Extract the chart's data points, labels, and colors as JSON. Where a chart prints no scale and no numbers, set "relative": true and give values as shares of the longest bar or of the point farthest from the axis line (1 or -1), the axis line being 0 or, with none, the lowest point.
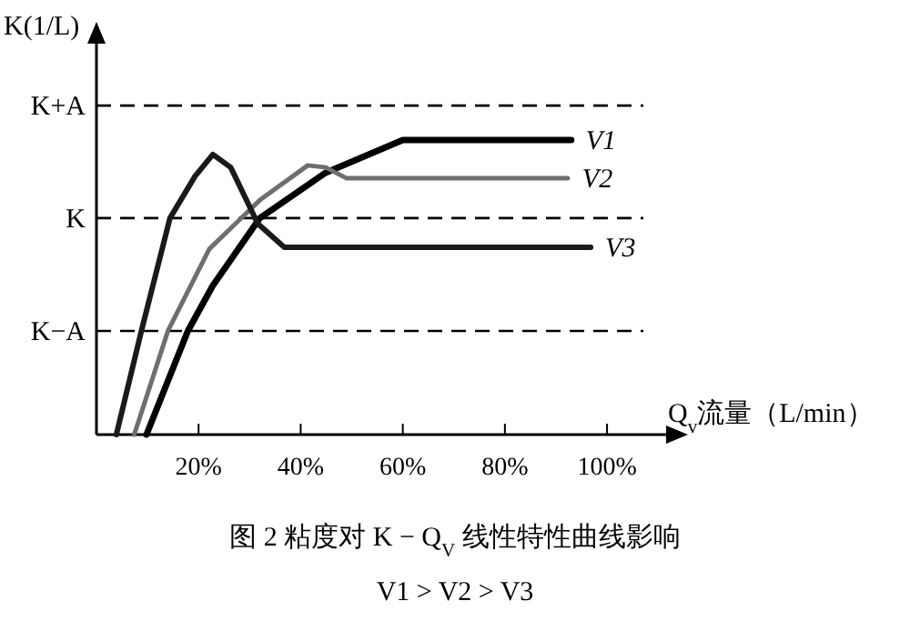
{
  "chart_data": {
    "type": "line",
    "relative": true,
    "title": "图 2   粘度对 K − Q$_{V}$ 线性特性曲线影响",
    "annotations": [
      "V1 > V2 > V3"
    ],
    "xlabel": "Q$_{v}$流量（L/min）",
    "ylabel": "K(1/L)",
    "xlim": [
      0,
      113
    ],
    "xticks": [
      {
        "value": 20,
        "label": "20%"
      },
      {
        "value": 40,
        "label": "40%"
      },
      {
        "value": 60,
        "label": "60%"
      },
      {
        "value": 80,
        "label": "80%"
      },
      {
        "value": 100,
        "label": "100%"
      }
    ],
    "series": [
      {
        "name": "V1",
        "color": "#000000",
        "x": [
          9.8,
          17.9,
          22.8,
          32,
          44.9,
          60,
          93
        ],
        "values": [
          0,
          0.352,
          0.506,
          0.735,
          0.889,
          1.0,
          1.0
        ]
      },
      {
        "name": "V2",
        "color": "#6e6e6e",
        "x": [
          7.4,
          14,
          22.1,
          32,
          41.4,
          44.9,
          49,
          92.3
        ],
        "values": [
          0,
          0.352,
          0.63,
          0.796,
          0.914,
          0.907,
          0.87,
          0.87
        ]
      },
      {
        "name": "V3",
        "color": "#1a1a1a",
        "x": [
          3.9,
          8.8,
          14.4,
          19.3,
          22.8,
          26.3,
          31.6,
          36.8,
          96.8
        ],
        "values": [
          0,
          0.352,
          0.735,
          0.877,
          0.951,
          0.907,
          0.716,
          0.636,
          0.636
        ]
      }
    ],
    "ref_lines": [
      {
        "axis": "y",
        "value": 1.117,
        "label": "K+A",
        "color": "#000000",
        "line_style": "dashed"
      },
      {
        "axis": "y",
        "value": 0.735,
        "label": "K",
        "color": "#000000",
        "line_style": "dashed"
      },
      {
        "axis": "y",
        "value": 0.352,
        "label": "K−A",
        "color": "#000000",
        "line_style": "dashed"
      }
    ],
    "grid": false,
    "legend": false,
    "marker": "none",
    "line_style": "solid"
  }
}
